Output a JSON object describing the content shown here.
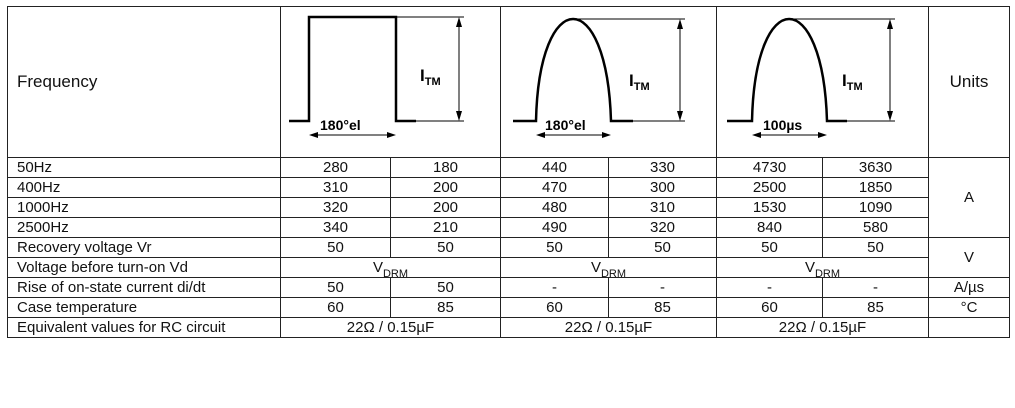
{
  "header": {
    "frequency_label": "Frequency",
    "units_label": "Units",
    "waveforms": [
      {
        "name": "rectangular",
        "pulse_label": "180°el",
        "current_label": "I",
        "current_sub": "TM"
      },
      {
        "name": "sinusoidal",
        "pulse_label": "180°el",
        "current_label": "I",
        "current_sub": "TM"
      },
      {
        "name": "sinusoidal-short",
        "pulse_label": "100µs",
        "current_label": "I",
        "current_sub": "TM"
      }
    ]
  },
  "freq_rows": [
    {
      "label": "50Hz",
      "values": [
        "280",
        "180",
        "440",
        "330",
        "4730",
        "3630"
      ]
    },
    {
      "label": "400Hz",
      "values": [
        "310",
        "200",
        "470",
        "300",
        "2500",
        "1850"
      ]
    },
    {
      "label": "1000Hz",
      "values": [
        "320",
        "200",
        "480",
        "310",
        "1530",
        "1090"
      ]
    },
    {
      "label": "2500Hz",
      "values": [
        "340",
        "210",
        "490",
        "320",
        "840",
        "580"
      ]
    }
  ],
  "freq_unit": "A",
  "recovery": {
    "label": "Recovery voltage Vr",
    "values": [
      "50",
      "50",
      "50",
      "50",
      "50",
      "50"
    ]
  },
  "vd": {
    "label": "Voltage before turn-on Vd",
    "value_main": "V",
    "value_sub": "DRM"
  },
  "voltage_unit": "V",
  "didt": {
    "label": "Rise of on-state current di/dt",
    "values": [
      "50",
      "50",
      "-",
      "-",
      "-",
      "-"
    ],
    "unit": "A/µs"
  },
  "case": {
    "label": "Case temperature",
    "values": [
      "60",
      "85",
      "60",
      "85",
      "60",
      "85"
    ],
    "unit": "°C"
  },
  "rc": {
    "label": "Equivalent values for RC circuit",
    "values": [
      "22Ω / 0.15µF",
      "22Ω / 0.15µF",
      "22Ω / 0.15µF"
    ],
    "unit": ""
  }
}
